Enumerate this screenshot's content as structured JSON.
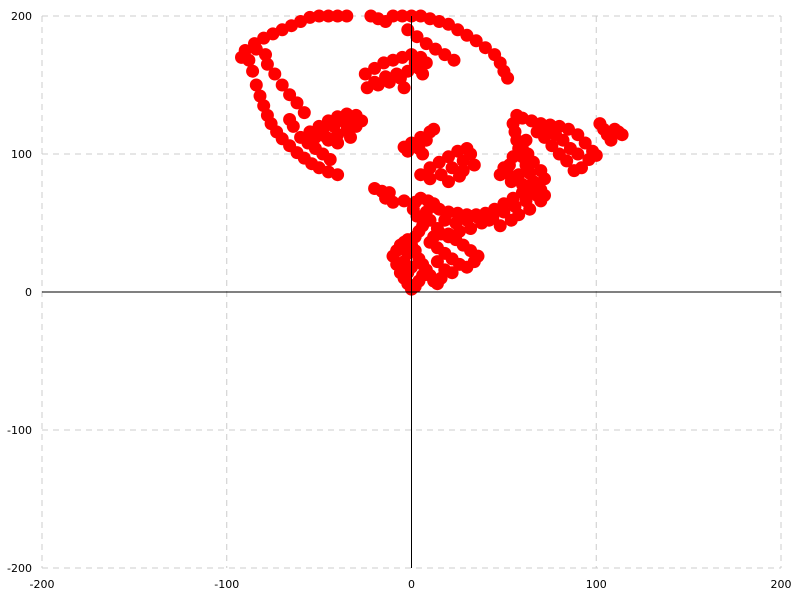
{
  "chart_data": {
    "type": "scatter",
    "title": "",
    "xlabel": "",
    "ylabel": "",
    "xlim": [
      -200,
      200
    ],
    "ylim": [
      -200,
      200
    ],
    "x_ticks": [
      -200,
      -100,
      0,
      100,
      200
    ],
    "y_ticks": [
      -200,
      -100,
      0,
      100,
      200
    ],
    "x_tick_labels": [
      "-200",
      "-100",
      "0",
      "100",
      "200"
    ],
    "y_tick_labels": [
      "200",
      "100",
      "0",
      "-100",
      "-200"
    ],
    "grid": true,
    "point_color": "#ff0000",
    "series": [
      {
        "points": [
          [
            -88,
            168
          ],
          [
            -86,
            160
          ],
          [
            -84,
            150
          ],
          [
            -82,
            142
          ],
          [
            -80,
            135
          ],
          [
            -78,
            128
          ],
          [
            -76,
            122
          ],
          [
            -73,
            116
          ],
          [
            -70,
            111
          ],
          [
            -66,
            106
          ],
          [
            -62,
            101
          ],
          [
            -58,
            97
          ],
          [
            -54,
            93
          ],
          [
            -50,
            90
          ],
          [
            -45,
            87
          ],
          [
            -40,
            85
          ],
          [
            -92,
            170
          ],
          [
            -90,
            175
          ],
          [
            -85,
            180
          ],
          [
            -80,
            184
          ],
          [
            -75,
            187
          ],
          [
            -70,
            190
          ],
          [
            -65,
            193
          ],
          [
            -60,
            196
          ],
          [
            -55,
            199
          ],
          [
            -50,
            200
          ],
          [
            -45,
            200
          ],
          [
            -40,
            200
          ],
          [
            -35,
            200
          ],
          [
            -78,
            165
          ],
          [
            -74,
            158
          ],
          [
            -70,
            150
          ],
          [
            -66,
            143
          ],
          [
            -62,
            137
          ],
          [
            -58,
            130
          ],
          [
            -84,
            176
          ],
          [
            -79,
            172
          ],
          [
            -60,
            112
          ],
          [
            -56,
            108
          ],
          [
            -52,
            104
          ],
          [
            -48,
            100
          ],
          [
            -44,
            96
          ],
          [
            -64,
            120
          ],
          [
            -66,
            125
          ],
          [
            -20,
            75
          ],
          [
            -14,
            68
          ],
          [
            -10,
            65
          ],
          [
            -4,
            66
          ],
          [
            -12,
            72
          ],
          [
            -16,
            73
          ],
          [
            -22,
            200
          ],
          [
            -18,
            198
          ],
          [
            -14,
            196
          ],
          [
            -10,
            200
          ],
          [
            -5,
            200
          ],
          [
            0,
            200
          ],
          [
            5,
            200
          ],
          [
            10,
            198
          ],
          [
            15,
            196
          ],
          [
            20,
            194
          ],
          [
            25,
            190
          ],
          [
            30,
            186
          ],
          [
            35,
            182
          ],
          [
            40,
            177
          ],
          [
            45,
            172
          ],
          [
            48,
            166
          ],
          [
            50,
            160
          ],
          [
            52,
            155
          ],
          [
            -2,
            190
          ],
          [
            3,
            185
          ],
          [
            8,
            180
          ],
          [
            13,
            176
          ],
          [
            18,
            172
          ],
          [
            23,
            168
          ],
          [
            -25,
            158
          ],
          [
            -20,
            162
          ],
          [
            -15,
            166
          ],
          [
            -10,
            168
          ],
          [
            -5,
            170
          ],
          [
            0,
            172
          ],
          [
            5,
            170
          ],
          [
            8,
            166
          ],
          [
            4,
            162
          ],
          [
            -2,
            160
          ],
          [
            -8,
            158
          ],
          [
            -14,
            156
          ],
          [
            -20,
            152
          ],
          [
            -24,
            148
          ],
          [
            -18,
            150
          ],
          [
            -12,
            152
          ],
          [
            -6,
            155
          ],
          [
            2,
            166
          ],
          [
            6,
            158
          ],
          [
            -4,
            148
          ],
          [
            -55,
            116
          ],
          [
            -50,
            120
          ],
          [
            -45,
            124
          ],
          [
            -40,
            127
          ],
          [
            -35,
            129
          ],
          [
            -30,
            128
          ],
          [
            -27,
            124
          ],
          [
            -30,
            120
          ],
          [
            -35,
            117
          ],
          [
            -40,
            114
          ],
          [
            -46,
            112
          ],
          [
            -52,
            112
          ],
          [
            -42,
            120
          ],
          [
            -36,
            123
          ],
          [
            -32,
            125
          ],
          [
            -48,
            118
          ],
          [
            -33,
            112
          ],
          [
            -40,
            108
          ],
          [
            -45,
            110
          ],
          [
            -4,
            105
          ],
          [
            0,
            108
          ],
          [
            5,
            112
          ],
          [
            10,
            116
          ],
          [
            12,
            118
          ],
          [
            8,
            110
          ],
          [
            4,
            104
          ],
          [
            -2,
            102
          ],
          [
            6,
            100
          ],
          [
            5,
            85
          ],
          [
            10,
            90
          ],
          [
            15,
            94
          ],
          [
            20,
            98
          ],
          [
            25,
            102
          ],
          [
            30,
            104
          ],
          [
            32,
            100
          ],
          [
            28,
            95
          ],
          [
            22,
            90
          ],
          [
            16,
            85
          ],
          [
            10,
            82
          ],
          [
            20,
            80
          ],
          [
            26,
            84
          ],
          [
            34,
            92
          ],
          [
            28,
            88
          ],
          [
            57,
            128
          ],
          [
            55,
            122
          ],
          [
            56,
            116
          ],
          [
            57,
            110
          ],
          [
            58,
            104
          ],
          [
            60,
            98
          ],
          [
            62,
            92
          ],
          [
            64,
            86
          ],
          [
            66,
            80
          ],
          [
            68,
            75
          ],
          [
            70,
            72
          ],
          [
            55,
            98
          ],
          [
            53,
            92
          ],
          [
            52,
            86
          ],
          [
            54,
            80
          ],
          [
            58,
            85
          ],
          [
            60,
            78
          ],
          [
            64,
            72
          ],
          [
            50,
            90
          ],
          [
            48,
            85
          ],
          [
            62,
            110
          ],
          [
            60,
            104
          ],
          [
            63,
            100
          ],
          [
            66,
            94
          ],
          [
            70,
            88
          ],
          [
            72,
            82
          ],
          [
            60,
            126
          ],
          [
            65,
            124
          ],
          [
            70,
            122
          ],
          [
            75,
            121
          ],
          [
            80,
            120
          ],
          [
            85,
            118
          ],
          [
            90,
            114
          ],
          [
            94,
            108
          ],
          [
            98,
            102
          ],
          [
            100,
            99
          ],
          [
            96,
            96
          ],
          [
            92,
            90
          ],
          [
            88,
            88
          ],
          [
            84,
            95
          ],
          [
            80,
            100
          ],
          [
            76,
            106
          ],
          [
            72,
            112
          ],
          [
            68,
            116
          ],
          [
            86,
            104
          ],
          [
            90,
            100
          ],
          [
            82,
            110
          ],
          [
            78,
            114
          ],
          [
            74,
            118
          ],
          [
            104,
            118
          ],
          [
            106,
            114
          ],
          [
            108,
            110
          ],
          [
            110,
            118
          ],
          [
            112,
            116
          ],
          [
            114,
            114
          ],
          [
            102,
            122
          ],
          [
            15,
            60
          ],
          [
            20,
            58
          ],
          [
            25,
            57
          ],
          [
            30,
            56
          ],
          [
            35,
            56
          ],
          [
            40,
            57
          ],
          [
            45,
            60
          ],
          [
            50,
            64
          ],
          [
            55,
            68
          ],
          [
            60,
            72
          ],
          [
            65,
            76
          ],
          [
            70,
            74
          ],
          [
            68,
            70
          ],
          [
            62,
            66
          ],
          [
            56,
            62
          ],
          [
            50,
            58
          ],
          [
            44,
            54
          ],
          [
            38,
            50
          ],
          [
            32,
            46
          ],
          [
            26,
            44
          ],
          [
            20,
            42
          ],
          [
            14,
            46
          ],
          [
            10,
            52
          ],
          [
            8,
            58
          ],
          [
            12,
            62
          ],
          [
            18,
            52
          ],
          [
            24,
            50
          ],
          [
            30,
            52
          ],
          [
            36,
            54
          ],
          [
            42,
            52
          ],
          [
            48,
            48
          ],
          [
            54,
            52
          ],
          [
            58,
            56
          ],
          [
            64,
            60
          ],
          [
            70,
            66
          ],
          [
            72,
            70
          ],
          [
            2,
            40
          ],
          [
            4,
            44
          ],
          [
            6,
            48
          ],
          [
            8,
            52
          ],
          [
            3,
            55
          ],
          [
            1,
            60
          ],
          [
            2,
            65
          ],
          [
            5,
            68
          ],
          [
            9,
            66
          ],
          [
            12,
            64
          ],
          [
            10,
            36
          ],
          [
            14,
            32
          ],
          [
            18,
            28
          ],
          [
            22,
            24
          ],
          [
            26,
            20
          ],
          [
            30,
            18
          ],
          [
            34,
            22
          ],
          [
            36,
            26
          ],
          [
            32,
            30
          ],
          [
            28,
            34
          ],
          [
            24,
            38
          ],
          [
            20,
            40
          ],
          [
            16,
            42
          ],
          [
            12,
            40
          ],
          [
            14,
            22
          ],
          [
            18,
            16
          ],
          [
            22,
            14
          ],
          [
            -8,
            20
          ],
          [
            -6,
            14
          ],
          [
            -4,
            10
          ],
          [
            -2,
            6
          ],
          [
            0,
            2
          ],
          [
            2,
            4
          ],
          [
            4,
            8
          ],
          [
            6,
            12
          ],
          [
            8,
            16
          ],
          [
            10,
            12
          ],
          [
            12,
            8
          ],
          [
            14,
            6
          ],
          [
            16,
            10
          ],
          [
            -10,
            26
          ],
          [
            -8,
            30
          ],
          [
            -6,
            34
          ],
          [
            -4,
            36
          ],
          [
            -2,
            38
          ],
          [
            0,
            34
          ],
          [
            -2,
            28
          ],
          [
            -4,
            22
          ],
          [
            -6,
            18
          ],
          [
            2,
            30
          ],
          [
            4,
            24
          ],
          [
            6,
            20
          ],
          [
            0,
            18
          ],
          [
            -2,
            14
          ]
        ]
      }
    ]
  }
}
